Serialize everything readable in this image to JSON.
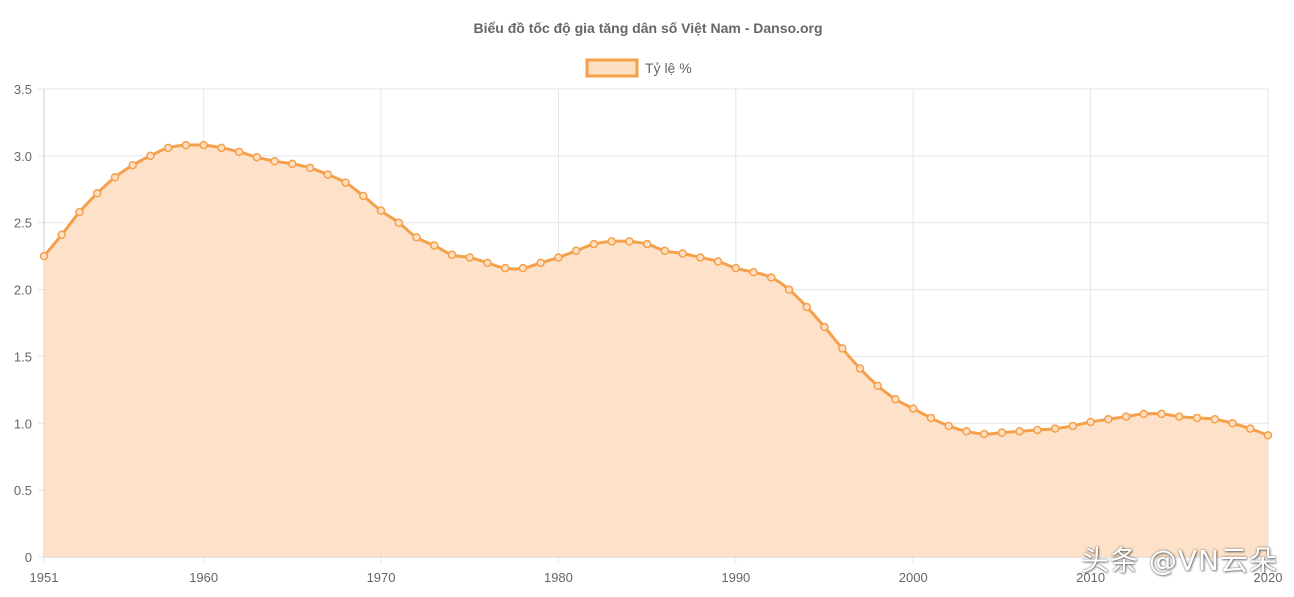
{
  "watermark": "头条 @VN云朵",
  "colors": {
    "line": "#f5a04a",
    "fill": "#fde0c4",
    "grid": "#e6e6e6",
    "text": "#666666"
  },
  "chart_data": {
    "type": "area",
    "title": "Biểu đồ tốc độ gia tăng dân số Việt Nam - Danso.org",
    "xlabel": "",
    "ylabel": "",
    "legend_position": "top",
    "grid": true,
    "x_tick_labels": [
      "1951",
      "1960",
      "1970",
      "1980",
      "1990",
      "2000",
      "2010",
      "2020"
    ],
    "y_tick_labels": [
      "0",
      "0.5",
      "1.0",
      "1.5",
      "2.0",
      "2.5",
      "3.0",
      "3.5"
    ],
    "ylim": [
      0,
      3.5
    ],
    "xlim": [
      1951,
      2020
    ],
    "x": [
      1951,
      1952,
      1953,
      1954,
      1955,
      1956,
      1957,
      1958,
      1959,
      1960,
      1961,
      1962,
      1963,
      1964,
      1965,
      1966,
      1967,
      1968,
      1969,
      1970,
      1971,
      1972,
      1973,
      1974,
      1975,
      1976,
      1977,
      1978,
      1979,
      1980,
      1981,
      1982,
      1983,
      1984,
      1985,
      1986,
      1987,
      1988,
      1989,
      1990,
      1991,
      1992,
      1993,
      1994,
      1995,
      1996,
      1997,
      1998,
      1999,
      2000,
      2001,
      2002,
      2003,
      2004,
      2005,
      2006,
      2007,
      2008,
      2009,
      2010,
      2011,
      2012,
      2013,
      2014,
      2015,
      2016,
      2017,
      2018,
      2019,
      2020
    ],
    "series": [
      {
        "name": "Tỷ lệ %",
        "values": [
          2.25,
          2.41,
          2.58,
          2.72,
          2.84,
          2.93,
          3.0,
          3.06,
          3.08,
          3.08,
          3.06,
          3.03,
          2.99,
          2.96,
          2.94,
          2.91,
          2.86,
          2.8,
          2.7,
          2.59,
          2.5,
          2.39,
          2.33,
          2.26,
          2.24,
          2.2,
          2.16,
          2.16,
          2.2,
          2.24,
          2.29,
          2.34,
          2.36,
          2.36,
          2.34,
          2.29,
          2.27,
          2.24,
          2.21,
          2.16,
          2.13,
          2.09,
          2.0,
          1.87,
          1.72,
          1.56,
          1.41,
          1.28,
          1.18,
          1.11,
          1.04,
          0.98,
          0.94,
          0.92,
          0.93,
          0.94,
          0.95,
          0.96,
          0.98,
          1.01,
          1.03,
          1.05,
          1.07,
          1.07,
          1.05,
          1.04,
          1.03,
          1.0,
          0.96,
          0.91
        ]
      }
    ]
  }
}
